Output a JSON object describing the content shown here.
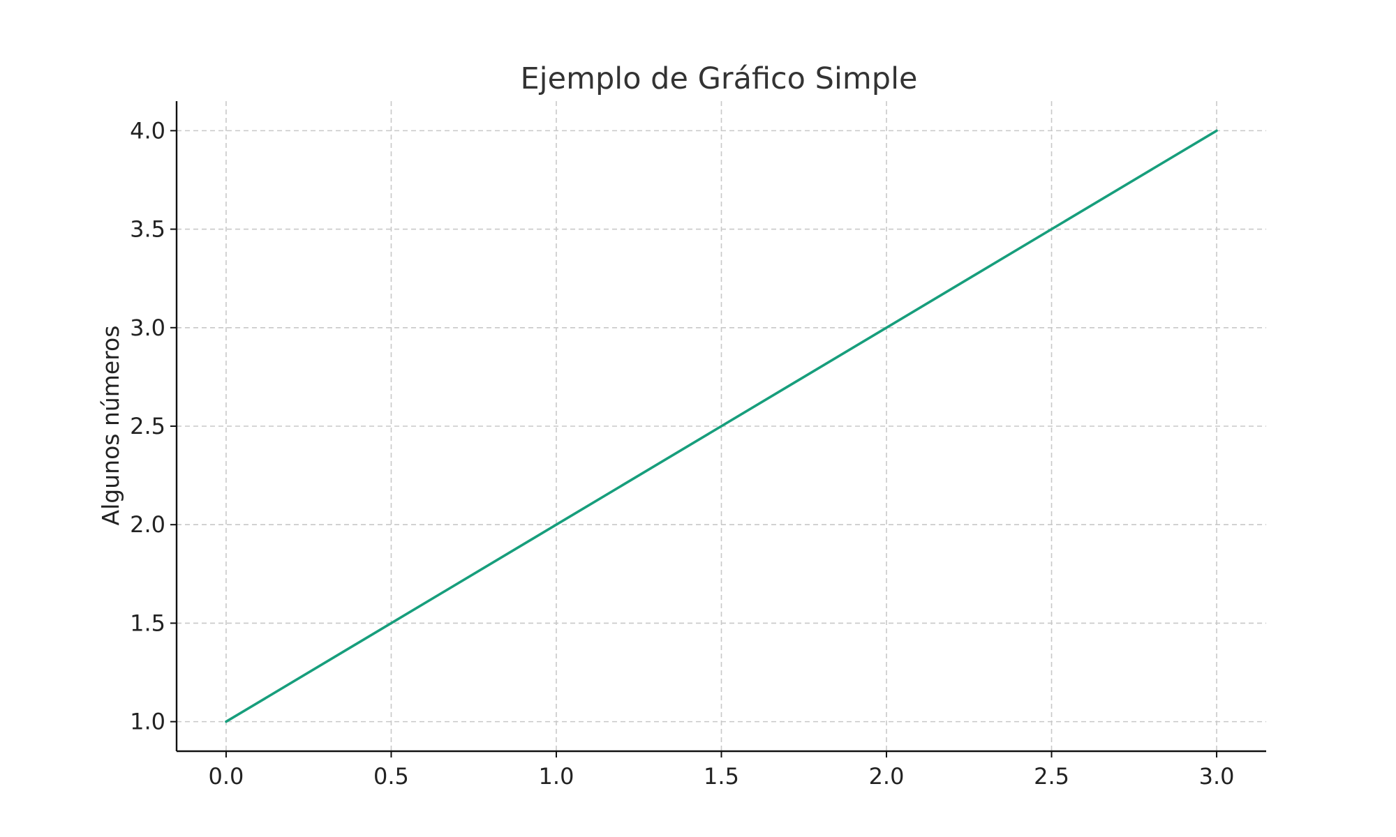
{
  "chart_data": {
    "type": "line",
    "title": "Ejemplo de Gráfico Simple",
    "xlabel": "",
    "ylabel": "Algunos números",
    "x": [
      0,
      1,
      2,
      3
    ],
    "series": [
      {
        "values": [
          1,
          2,
          3,
          4
        ],
        "color": "#179e7c"
      }
    ],
    "xlim": [
      -0.15,
      3.15
    ],
    "ylim": [
      0.85,
      4.15
    ],
    "xticks": [
      0.0,
      0.5,
      1.0,
      1.5,
      2.0,
      2.5,
      3.0
    ],
    "yticks": [
      1.0,
      1.5,
      2.0,
      2.5,
      3.0,
      3.5,
      4.0
    ],
    "xtick_labels": [
      "0.0",
      "0.5",
      "1.0",
      "1.5",
      "2.0",
      "2.5",
      "3.0"
    ],
    "ytick_labels": [
      "1.0",
      "1.5",
      "2.0",
      "2.5",
      "3.0",
      "3.5",
      "4.0"
    ],
    "grid": true,
    "legend": "none"
  }
}
